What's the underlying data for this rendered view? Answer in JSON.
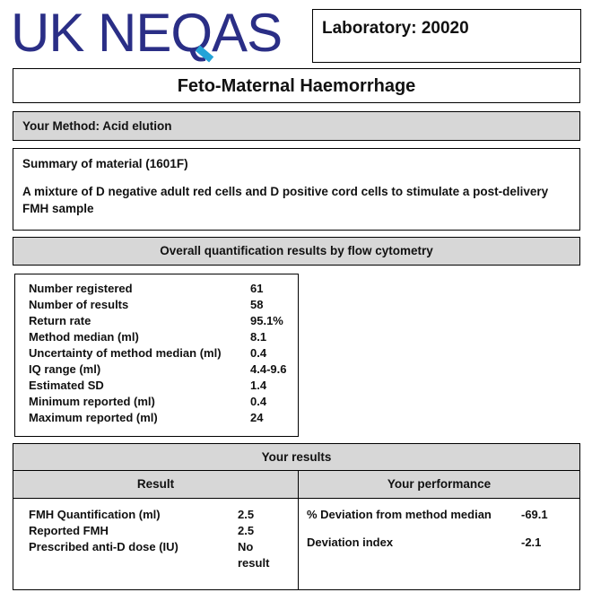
{
  "logo": {
    "text_a": "UK NE",
    "text_q": "Q",
    "text_b": "AS"
  },
  "laboratory": "Laboratory: 20020",
  "page_title": "Feto-Maternal Haemorrhage",
  "method": "Your Method: Acid elution",
  "summary": {
    "heading": "Summary of material (1601F)",
    "text": "A mixture of D negative adult red cells and D positive cord cells to stimulate a post-delivery FMH sample"
  },
  "overall_heading": "Overall quantification results by flow cytometry",
  "stats": [
    {
      "label": "Number registered",
      "value": "61"
    },
    {
      "label": "Number of results",
      "value": "58"
    },
    {
      "label": "Return rate",
      "value": "95.1%"
    },
    {
      "label": "Method median (ml)",
      "value": "8.1"
    },
    {
      "label": "Uncertainty of method median (ml)",
      "value": "0.4"
    },
    {
      "label": "IQ range (ml)",
      "value": "4.4-9.6"
    },
    {
      "label": "Estimated SD",
      "value": "1.4"
    },
    {
      "label": "Minimum reported (ml)",
      "value": "0.4"
    },
    {
      "label": "Maximum reported (ml)",
      "value": "24"
    }
  ],
  "your_results": {
    "heading": "Your results",
    "result_heading": "Result",
    "performance_heading": "Your performance",
    "results": [
      {
        "label": "FMH Quantification (ml)",
        "value": "2.5"
      },
      {
        "label": "Reported FMH",
        "value": "2.5"
      },
      {
        "label": "Prescribed anti-D dose (IU)",
        "value": "No result"
      }
    ],
    "performance": [
      {
        "label": "% Deviation from method median",
        "value": "-69.1"
      },
      {
        "label": "Deviation index",
        "value": "-2.1"
      }
    ]
  }
}
